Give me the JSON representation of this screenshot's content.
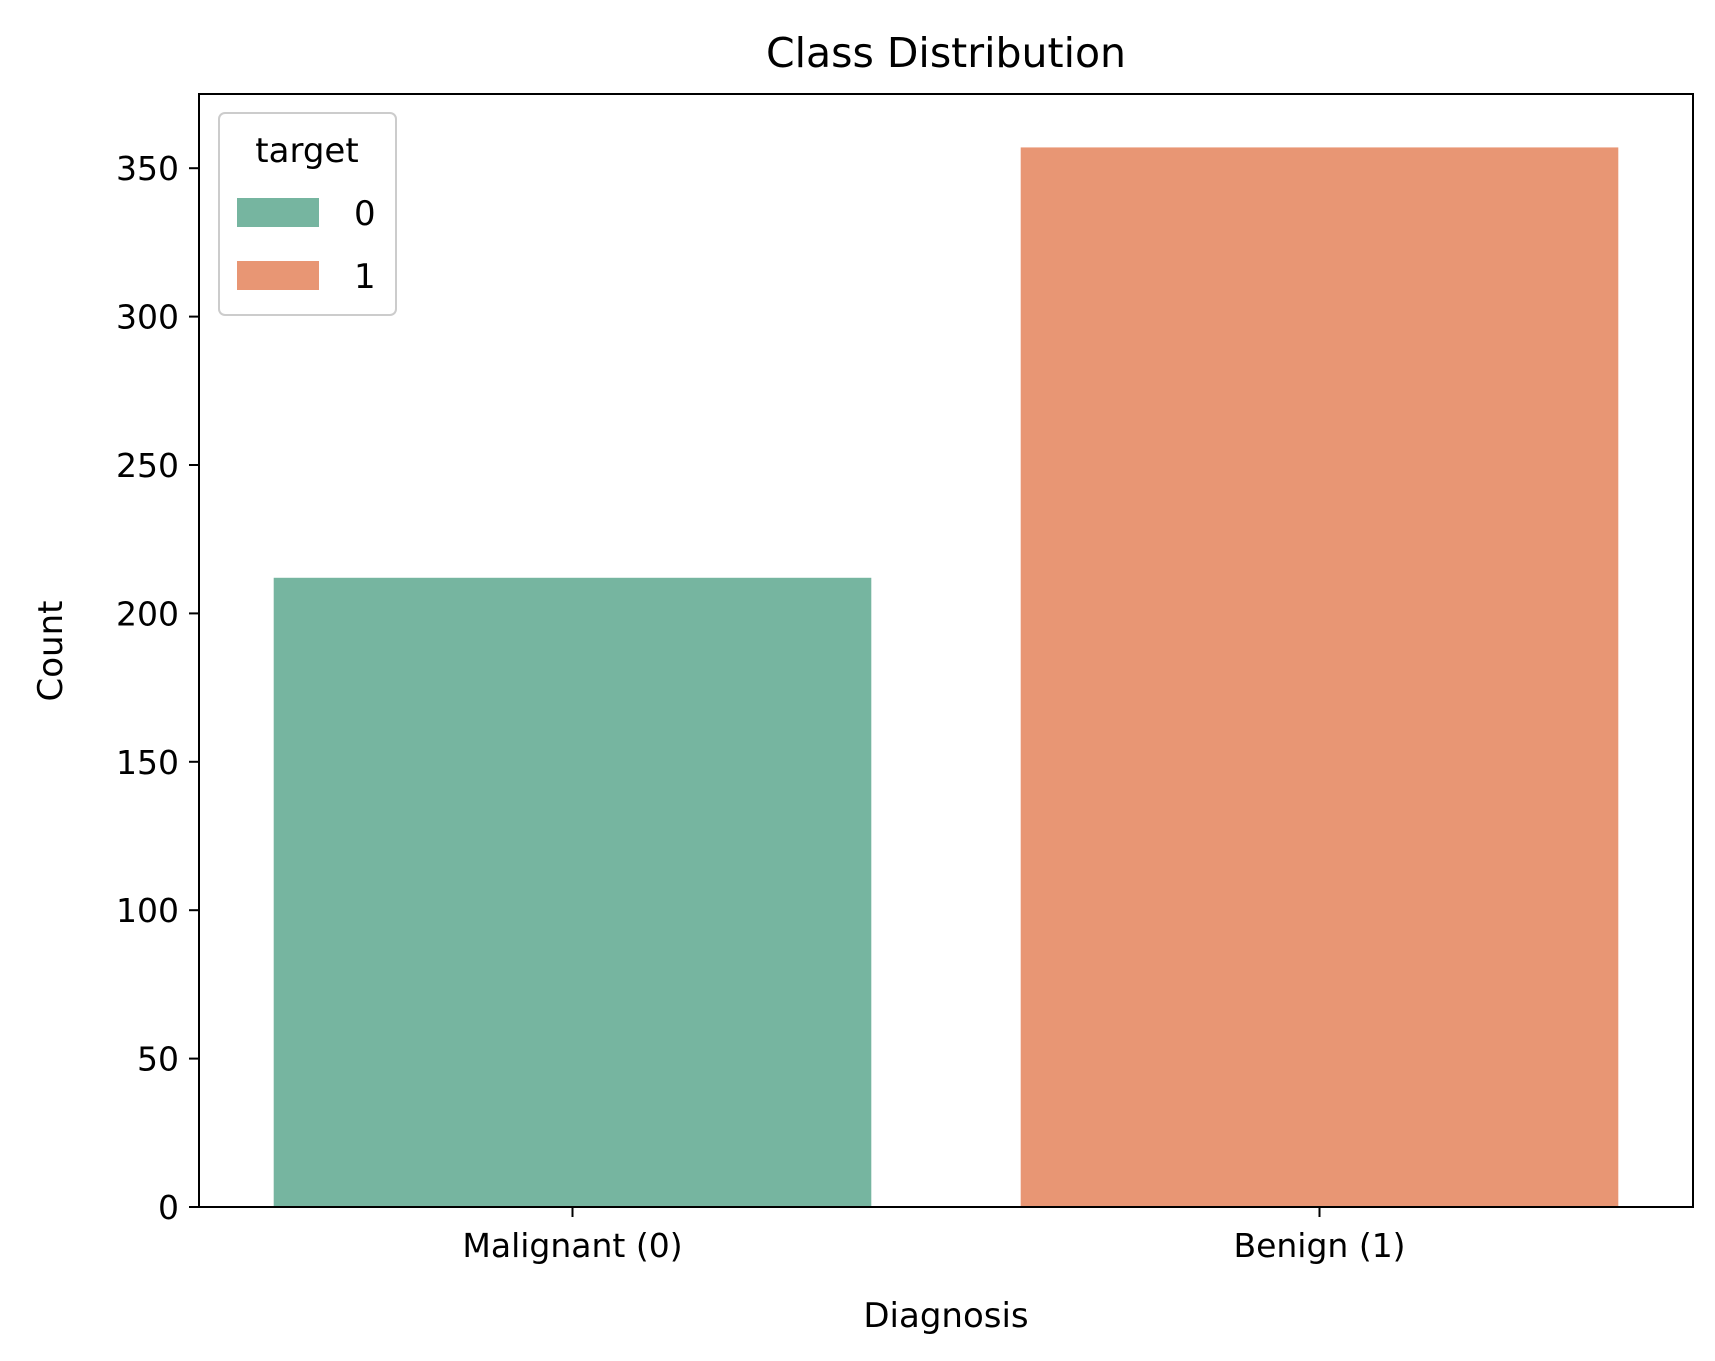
{
  "chart_data": {
    "type": "bar",
    "title": "Class Distribution",
    "xlabel": "Diagnosis",
    "ylabel": "Count",
    "categories": [
      "Malignant (0)",
      "Benign (1)"
    ],
    "values": [
      212,
      357
    ],
    "bar_colors": [
      "#76b5a0",
      "#e89674"
    ],
    "ylim": [
      0,
      375
    ],
    "yticks": [
      0,
      50,
      100,
      150,
      200,
      250,
      300,
      350
    ],
    "grid": false,
    "legend": {
      "title": "target",
      "placement": "top-left",
      "entries": [
        {
          "label": "0",
          "color": "#76b5a0"
        },
        {
          "label": "1",
          "color": "#e89674"
        }
      ]
    }
  }
}
